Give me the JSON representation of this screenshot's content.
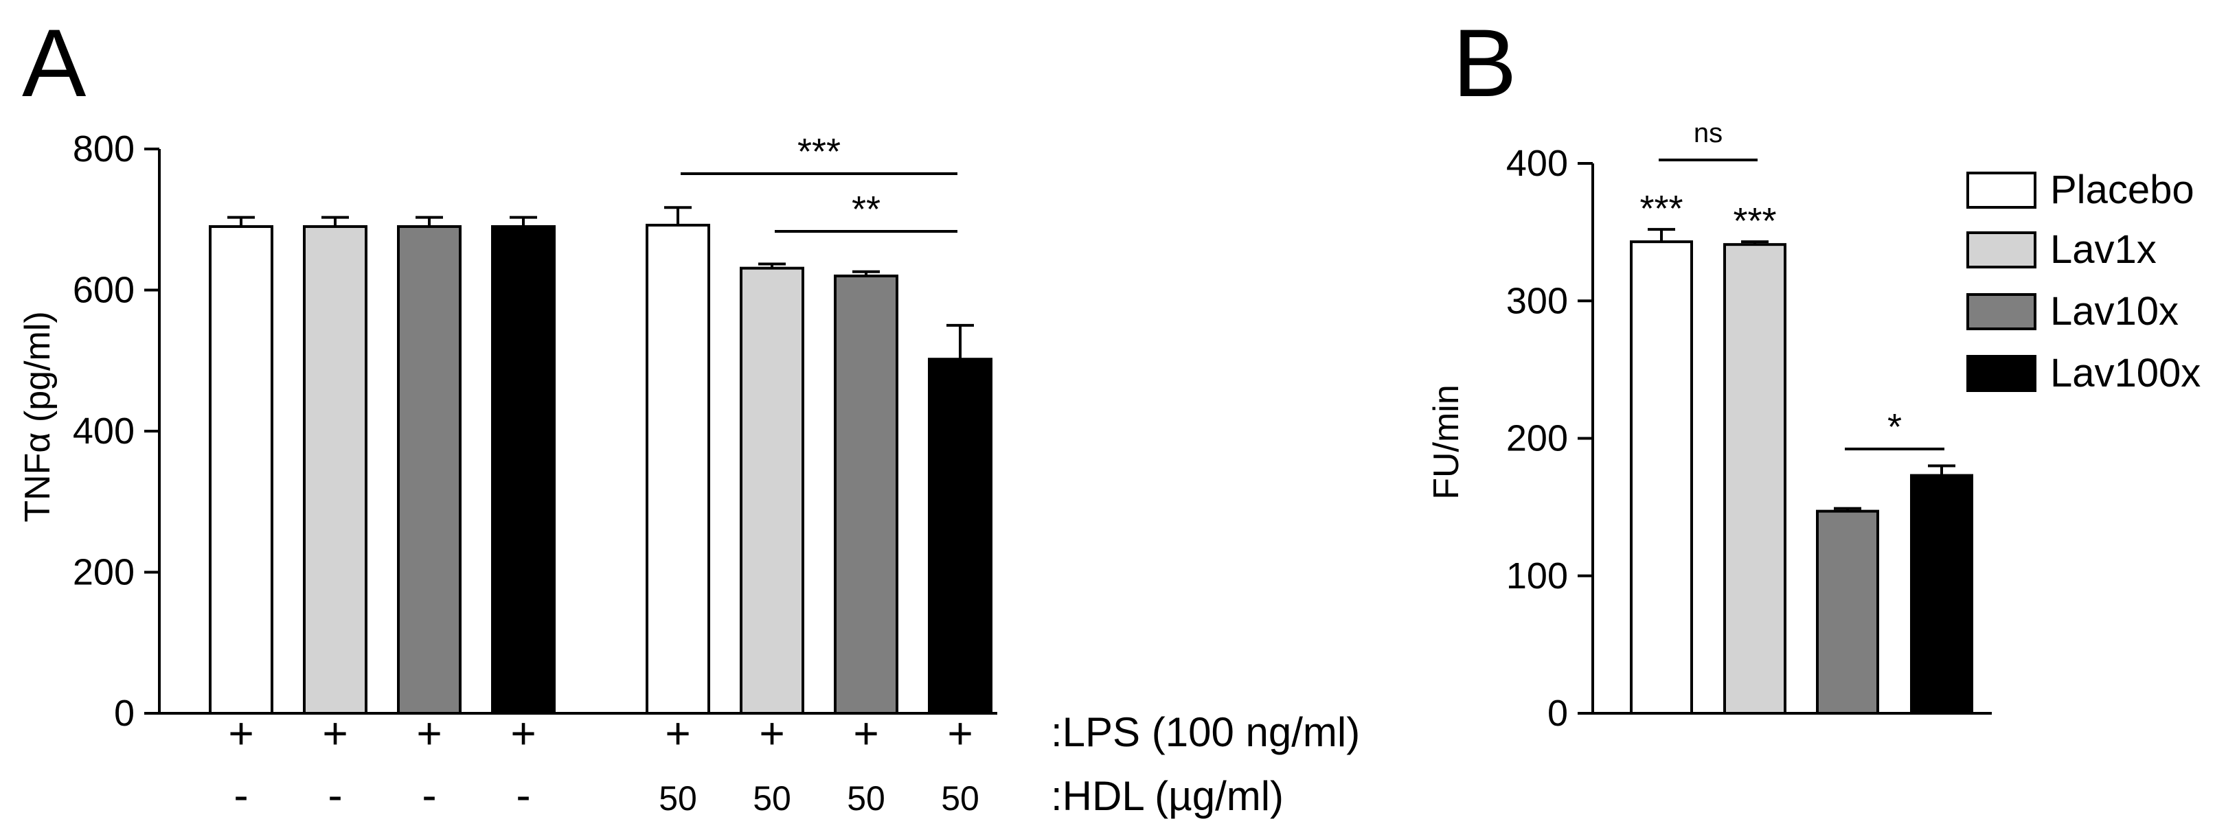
{
  "chart_data": [
    {
      "panel_label": "A",
      "type": "bar",
      "ylabel": "TNFα (pg/ml)",
      "xlabel": "",
      "ylim": [
        0,
        800
      ],
      "yticks": [
        "0",
        "200",
        "400",
        "600",
        "800"
      ],
      "bars": [
        {
          "group": "Placebo",
          "value": 690,
          "error": 13,
          "lps": "+",
          "hdl": "-"
        },
        {
          "group": "Lav1x",
          "value": 690,
          "error": 13,
          "lps": "+",
          "hdl": "-"
        },
        {
          "group": "Lav10x",
          "value": 690,
          "error": 13,
          "lps": "+",
          "hdl": "-"
        },
        {
          "group": "Lav100x",
          "value": 690,
          "error": 13,
          "lps": "+",
          "hdl": "-"
        },
        {
          "group": "Placebo",
          "value": 692,
          "error": 25,
          "lps": "+",
          "hdl": "50"
        },
        {
          "group": "Lav1x",
          "value": 631,
          "error": 6,
          "lps": "+",
          "hdl": "50"
        },
        {
          "group": "Lav10x",
          "value": 620,
          "error": 6,
          "lps": "+",
          "hdl": "50"
        },
        {
          "group": "Lav100x",
          "value": 502,
          "error": 48,
          "lps": "+",
          "hdl": "50"
        }
      ],
      "row_labels": {
        "lps": ":LPS (100 ng/ml)",
        "hdl": ":HDL (µg/ml)"
      },
      "significance": [
        {
          "from": 4,
          "to": 7,
          "label": "***"
        },
        {
          "from": 5,
          "to": 7,
          "label": "**"
        }
      ]
    },
    {
      "panel_label": "B",
      "type": "bar",
      "ylabel": "FU/min",
      "xlabel": "",
      "ylim": [
        0,
        400
      ],
      "yticks": [
        "0",
        "100",
        "200",
        "300",
        "400"
      ],
      "bars": [
        {
          "group": "Placebo",
          "value": 343,
          "error": 9,
          "star": "***"
        },
        {
          "group": "Lav1x",
          "value": 341,
          "error": 2,
          "star": "***"
        },
        {
          "group": "Lav10x",
          "value": 147,
          "error": 2,
          "star": ""
        },
        {
          "group": "Lav100x",
          "value": 173,
          "error": 7,
          "star": ""
        }
      ],
      "significance": [
        {
          "from": 0,
          "to": 1,
          "label": "ns"
        },
        {
          "from": 2,
          "to": 3,
          "label": "*"
        }
      ]
    }
  ],
  "legend": [
    {
      "label": "Placebo",
      "color": "#ffffff"
    },
    {
      "label": "Lav1x",
      "color": "#d3d3d3"
    },
    {
      "label": "Lav10x",
      "color": "#7f7f7f"
    },
    {
      "label": "Lav100x",
      "color": "#000000"
    }
  ],
  "colors": {
    "Placebo": "#ffffff",
    "Lav1x": "#d3d3d3",
    "Lav10x": "#7f7f7f",
    "Lav100x": "#000000",
    "stroke": "#000000"
  }
}
